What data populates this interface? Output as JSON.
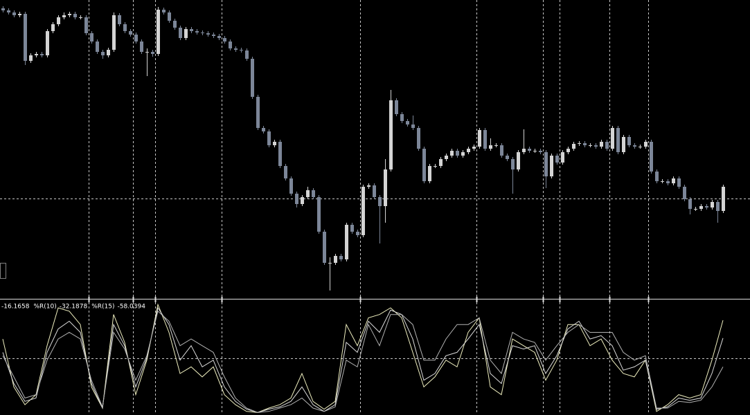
{
  "chart_data": [
    {
      "type": "candlestick",
      "xlim": [
        -0.5,
        134.875
      ],
      "ylim": [
        0,
        432
      ],
      "grid_y": [
        145
      ],
      "separators": [
        15.5,
        23.5,
        27.5,
        39.5,
        64.5,
        85.5,
        97.5,
        100.5,
        109.5,
        116.5
      ],
      "up_color": "#d4d4d4",
      "down_color": "#7c8698",
      "open": [
        420,
        417,
        414,
        410,
        412,
        344,
        352,
        354,
        352,
        387,
        397,
        407,
        410,
        412,
        407,
        407,
        384,
        372,
        357,
        352,
        360,
        410,
        397,
        387,
        382,
        372,
        357,
        357,
        354,
        418,
        414,
        402,
        392,
        377,
        390,
        387,
        385,
        384,
        382,
        380,
        377,
        372,
        362,
        360,
        359,
        347,
        292,
        247,
        242,
        222,
        227,
        192,
        174,
        152,
        137,
        147,
        157,
        147,
        97,
        52,
        52,
        62,
        57,
        107,
        97,
        92,
        162,
        164,
        147,
        134,
        187,
        287,
        267,
        257,
        252,
        247,
        217,
        170,
        192,
        192,
        202,
        207,
        214,
        207,
        212,
        217,
        220,
        244,
        217,
        222,
        222,
        207,
        202,
        187,
        212,
        217,
        214,
        214,
        212,
        177,
        207,
        197,
        212,
        217,
        224,
        225,
        222,
        222,
        220,
        227,
        217,
        247,
        212,
        234,
        222,
        220,
        220,
        227,
        184,
        170,
        170,
        167,
        174,
        162,
        144,
        130,
        130,
        134,
        132,
        140,
        127
      ],
      "high": [
        423,
        420,
        417,
        415,
        415,
        355,
        357,
        357,
        390,
        400,
        410,
        414,
        415,
        415,
        410,
        410,
        387,
        375,
        360,
        363,
        414,
        413,
        400,
        390,
        385,
        375,
        362,
        360,
        422,
        421,
        417,
        405,
        395,
        393,
        393,
        390,
        388,
        387,
        385,
        383,
        380,
        375,
        365,
        363,
        362,
        350,
        295,
        250,
        245,
        230,
        230,
        195,
        177,
        155,
        150,
        162,
        160,
        150,
        100,
        60,
        65,
        65,
        110,
        110,
        100,
        165,
        167,
        167,
        150,
        202,
        302,
        290,
        270,
        260,
        265,
        250,
        220,
        195,
        195,
        205,
        210,
        217,
        217,
        215,
        220,
        223,
        247,
        247,
        232,
        225,
        225,
        210,
        205,
        215,
        245,
        220,
        217,
        217,
        215,
        210,
        210,
        215,
        220,
        227,
        228,
        228,
        225,
        225,
        230,
        230,
        250,
        250,
        237,
        237,
        225,
        223,
        230,
        230,
        187,
        173,
        173,
        177,
        177,
        165,
        147,
        133,
        137,
        137,
        143,
        143,
        165
      ],
      "low": [
        414,
        411,
        407,
        407,
        338,
        341,
        349,
        349,
        349,
        384,
        394,
        404,
        407,
        404,
        404,
        381,
        369,
        354,
        347,
        349,
        357,
        394,
        384,
        379,
        369,
        354,
        322,
        350,
        351,
        411,
        399,
        389,
        374,
        374,
        384,
        382,
        381,
        379,
        377,
        374,
        369,
        359,
        357,
        356,
        344,
        289,
        244,
        239,
        219,
        219,
        189,
        171,
        149,
        132,
        134,
        144,
        144,
        94,
        49,
        12,
        49,
        54,
        54,
        94,
        89,
        89,
        159,
        144,
        80,
        110,
        184,
        264,
        254,
        249,
        244,
        214,
        167,
        167,
        189,
        189,
        199,
        204,
        204,
        204,
        209,
        214,
        217,
        214,
        214,
        219,
        204,
        199,
        152,
        184,
        209,
        211,
        211,
        209,
        160,
        174,
        194,
        194,
        209,
        214,
        221,
        219,
        219,
        217,
        217,
        214,
        214,
        209,
        209,
        219,
        217,
        217,
        217,
        181,
        167,
        167,
        164,
        164,
        159,
        141,
        122,
        127,
        127,
        129,
        129,
        110,
        124
      ],
      "close": [
        417,
        414,
        410,
        412,
        344,
        352,
        354,
        352,
        387,
        397,
        407,
        410,
        412,
        407,
        407,
        384,
        372,
        357,
        352,
        360,
        410,
        397,
        387,
        382,
        372,
        357,
        357,
        354,
        418,
        414,
        402,
        392,
        377,
        390,
        387,
        385,
        384,
        382,
        380,
        377,
        372,
        362,
        360,
        359,
        347,
        292,
        247,
        242,
        222,
        227,
        192,
        174,
        152,
        137,
        147,
        157,
        147,
        97,
        52,
        52,
        62,
        57,
        107,
        97,
        92,
        162,
        164,
        147,
        134,
        187,
        287,
        267,
        257,
        252,
        247,
        217,
        170,
        192,
        192,
        202,
        207,
        214,
        207,
        212,
        217,
        220,
        244,
        217,
        222,
        222,
        207,
        202,
        187,
        212,
        217,
        214,
        214,
        212,
        177,
        207,
        197,
        212,
        217,
        224,
        225,
        222,
        222,
        220,
        227,
        217,
        247,
        212,
        234,
        222,
        220,
        220,
        227,
        184,
        170,
        170,
        167,
        174,
        162,
        144,
        130,
        130,
        134,
        132,
        140,
        127,
        162
      ]
    },
    {
      "type": "line",
      "xlim": [
        -0.5,
        134.875
      ],
      "ylim": [
        -100,
        0
      ],
      "grid_y": [
        -50
      ],
      "x": [
        0,
        2,
        4,
        6,
        8,
        10,
        12,
        14,
        16,
        18,
        20,
        22,
        24,
        26,
        28,
        30,
        32,
        34,
        36,
        38,
        40,
        42,
        44,
        46,
        48,
        50,
        52,
        54,
        56,
        58,
        60,
        62,
        64,
        66,
        68,
        70,
        72,
        74,
        76,
        78,
        80,
        82,
        84,
        86,
        88,
        90,
        92,
        94,
        96,
        98,
        100,
        102,
        104,
        106,
        108,
        110,
        112,
        114,
        116,
        118,
        120,
        122,
        124,
        126,
        128,
        130
      ],
      "series": [
        {
          "color": "#f0f0c0",
          "current": -16.1658,
          "values": [
            -33,
            -76,
            -92,
            -83,
            -39,
            -5,
            -8,
            -20,
            -76,
            -95,
            -11,
            -36,
            -83,
            -52,
            -2,
            -27,
            -64,
            -58,
            -67,
            -58,
            -83,
            -92,
            -98,
            -99,
            -95,
            -92,
            -86,
            -64,
            -89,
            -96,
            -89,
            -20,
            -39,
            -14,
            -11,
            -5,
            -14,
            -45,
            -76,
            -67,
            -52,
            -58,
            -27,
            -14,
            -76,
            -83,
            -33,
            -39,
            -45,
            -70,
            -52,
            -20,
            -20,
            -39,
            -33,
            -52,
            -64,
            -67,
            -52,
            -98,
            -92,
            -83,
            -86,
            -83,
            -52,
            -16.1658
          ]
        },
        {
          "name": "%R(10)",
          "color": "#dcdcdc",
          "current": -32.1878,
          "values": [
            -45,
            -73,
            -89,
            -86,
            -45,
            -24,
            -17,
            -27,
            -73,
            -95,
            -20,
            -39,
            -76,
            -50,
            -5,
            -20,
            -52,
            -39,
            -58,
            -52,
            -76,
            -89,
            -96,
            -99,
            -96,
            -94,
            -89,
            -76,
            -92,
            -98,
            -92,
            -36,
            -45,
            -17,
            -27,
            -7,
            -11,
            -33,
            -70,
            -64,
            -48,
            -45,
            -33,
            -20,
            -64,
            -73,
            -39,
            -42,
            -39,
            -64,
            -48,
            -24,
            -17,
            -33,
            -30,
            -39,
            -61,
            -58,
            -52,
            -96,
            -94,
            -86,
            -88,
            -86,
            -64,
            -32.1878
          ]
        },
        {
          "name": "%R(15)",
          "color": "#b4b4b4",
          "current": -58.0394,
          "values": [
            -48,
            -67,
            -86,
            -83,
            -52,
            -33,
            -27,
            -33,
            -70,
            -94,
            -27,
            -42,
            -70,
            -48,
            -8,
            -17,
            -39,
            -33,
            -39,
            -45,
            -67,
            -86,
            -95,
            -99,
            -98,
            -95,
            -92,
            -86,
            -95,
            -98,
            -94,
            -52,
            -58,
            -20,
            -39,
            -11,
            -11,
            -20,
            -52,
            -52,
            -33,
            -20,
            -20,
            -14,
            -52,
            -64,
            -27,
            -33,
            -36,
            -52,
            -39,
            -27,
            -20,
            -27,
            -27,
            -27,
            -45,
            -52,
            -48,
            -95,
            -95,
            -89,
            -90,
            -88,
            -76,
            -58.0394
          ]
        }
      ]
    }
  ]
}
